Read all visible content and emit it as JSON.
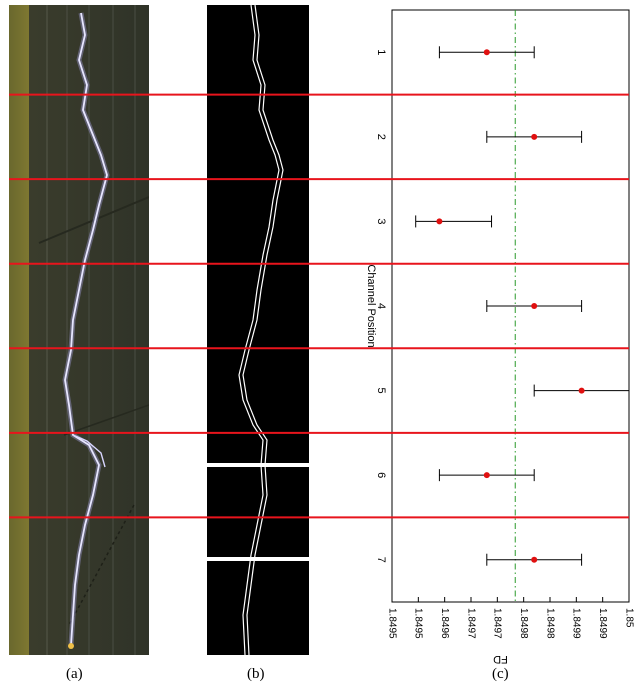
{
  "panels": {
    "a": {
      "caption": "(a)"
    },
    "b": {
      "caption": "(b)"
    },
    "c": {
      "caption": "(c)"
    }
  },
  "colors": {
    "divider_red": "#e8141c",
    "point_red": "#e01010",
    "mean_line_green": "#2a9a2a",
    "errorbar": "#000000",
    "photo_bg": "#3d3f2c",
    "lightning": "#c9c6ff",
    "edge_bg": "#000000",
    "edge_line": "#ffffff"
  },
  "chart_data": {
    "type": "scatter",
    "orientation": "rotated-90-clockwise",
    "xlabel": "FD",
    "ylabel": "Channel Position",
    "xlim": [
      1.8495,
      1.85
    ],
    "x_ticks": [
      "1.8495",
      "1.8495",
      "1.8496",
      "1.8497",
      "1.8497",
      "1.8498",
      "1.8498",
      "1.8499",
      "1.8499",
      "1.85"
    ],
    "categories": [
      "1",
      "2",
      "3",
      "4",
      "5",
      "6",
      "7"
    ],
    "values": [
      1.8497,
      1.8498,
      1.8496,
      1.8498,
      1.8499,
      1.8497,
      1.8498
    ],
    "error_low": [
      1.8496,
      1.8497,
      1.84955,
      1.8497,
      1.8498,
      1.8496,
      1.8497
    ],
    "error_high": [
      1.8498,
      1.8499,
      1.84971,
      1.8499,
      1.85,
      1.8498,
      1.8499
    ],
    "mean_line": 1.84976,
    "grid": false
  }
}
